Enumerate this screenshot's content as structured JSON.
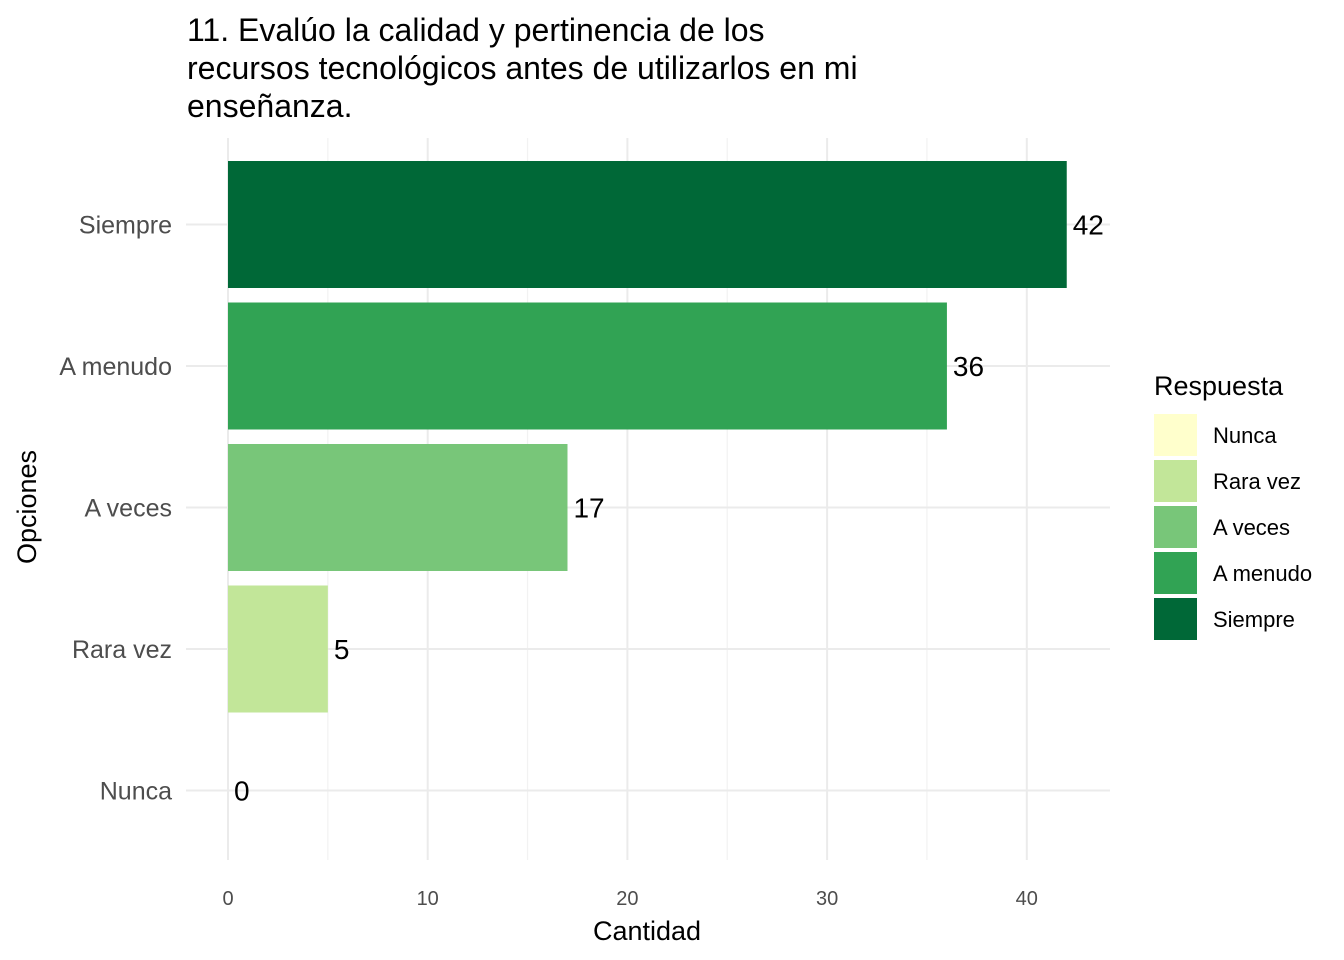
{
  "chart_data": {
    "type": "bar",
    "orientation": "horizontal",
    "title_lines": [
      "11. Evalúo la calidad y pertinencia de los",
      "recursos tecnológicos antes de utilizarlos en mi",
      "enseñanza."
    ],
    "xlabel": "Cantidad",
    "ylabel": "Opciones",
    "categories": [
      "Siempre",
      "A menudo",
      "A veces",
      "Rara vez",
      "Nunca"
    ],
    "values": [
      42,
      36,
      17,
      5,
      0
    ],
    "value_labels": [
      "42",
      "36",
      "17",
      "5",
      "0"
    ],
    "colors": [
      "#006837",
      "#31a354",
      "#78c679",
      "#c2e699",
      "#ffffcc"
    ],
    "xlim": [
      0,
      44
    ],
    "xticks": [
      0,
      10,
      20,
      30,
      40
    ],
    "xtick_labels": [
      "0",
      "10",
      "20",
      "30",
      "40"
    ],
    "grid": true,
    "legend": {
      "title": "Respuesta",
      "position": "right",
      "items": [
        {
          "label": "Nunca",
          "color": "#ffffcc"
        },
        {
          "label": "Rara vez",
          "color": "#c2e699"
        },
        {
          "label": "A veces",
          "color": "#78c679"
        },
        {
          "label": "A menudo",
          "color": "#31a354"
        },
        {
          "label": "Siempre",
          "color": "#006837"
        }
      ]
    }
  }
}
